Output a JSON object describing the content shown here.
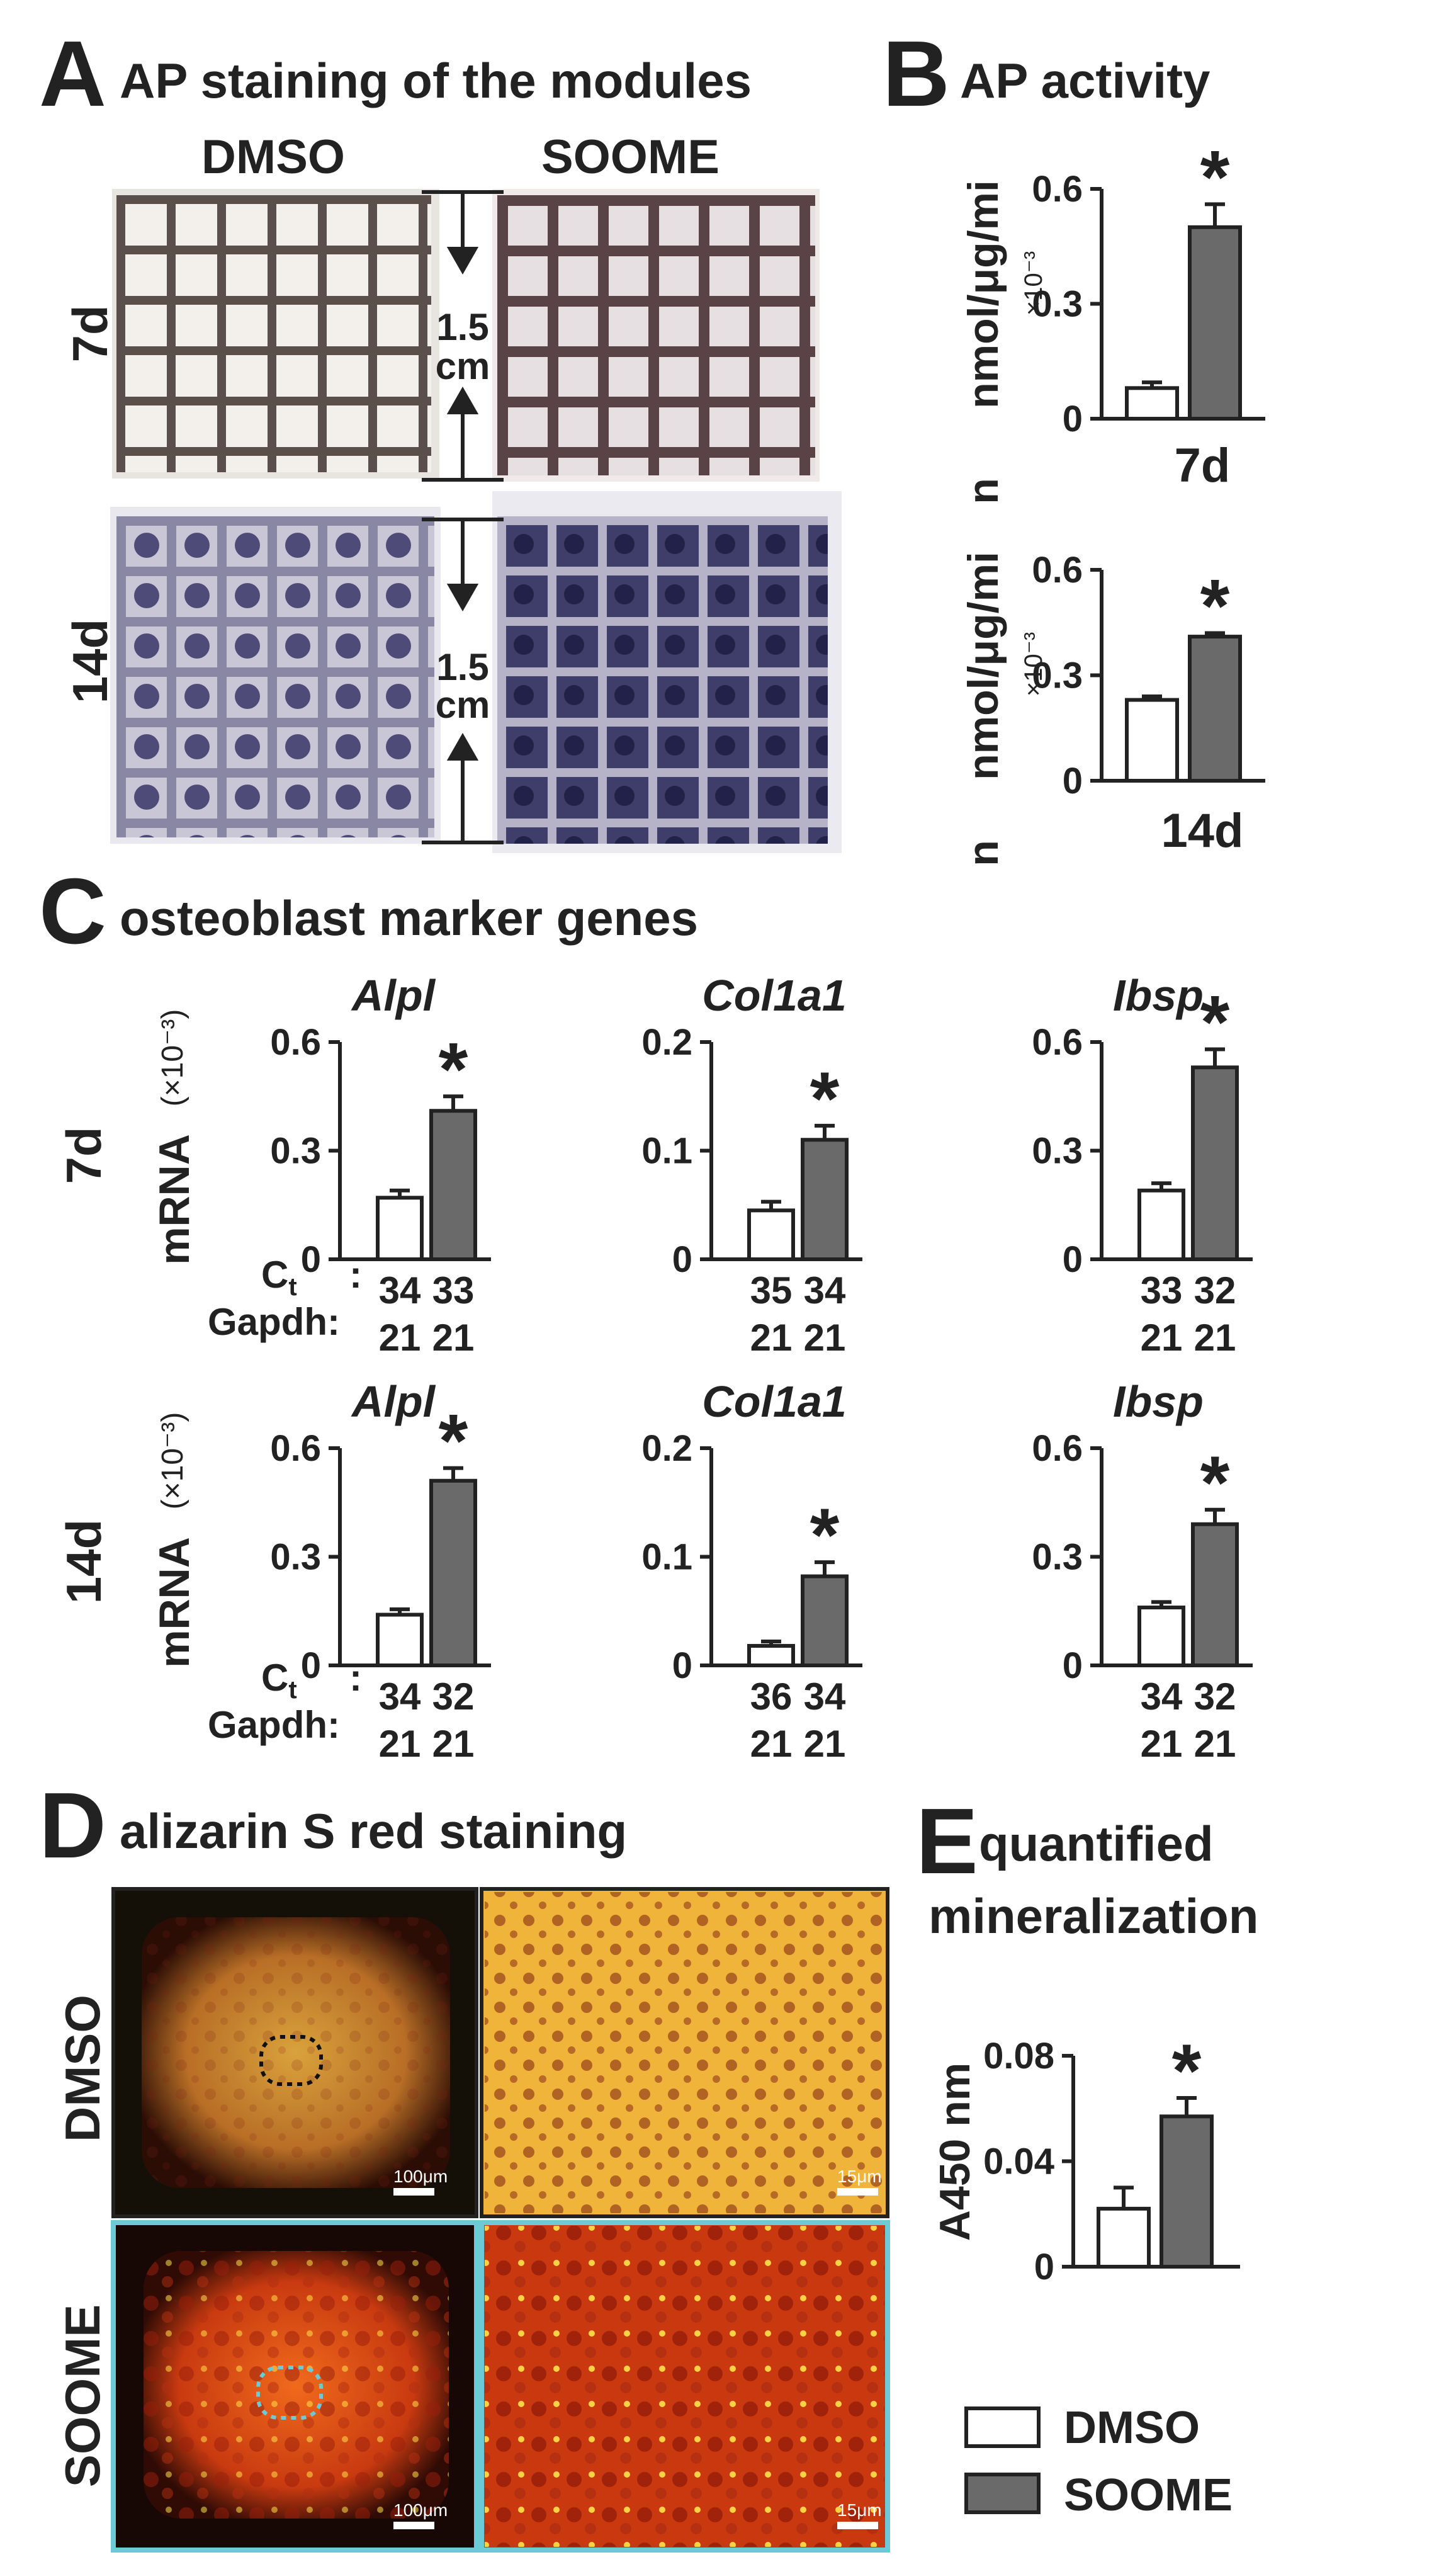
{
  "panels": {
    "A": {
      "letter": "A",
      "title": "AP staining of the modules",
      "col_dmso": "DMSO",
      "col_soome": "SOOME",
      "row_7d": "7d",
      "row_14d": "14d",
      "scale_7d": [
        "1.5",
        "cm"
      ],
      "scale_14d": [
        "1.5",
        "cm"
      ]
    },
    "B": {
      "letter": "B",
      "title": "AP activity"
    },
    "C": {
      "letter": "C",
      "title": "osteoblast marker genes",
      "row_7d": "7d",
      "row_14d": "14d",
      "ylabel_main": "mRNA",
      "ylabel_unit": "(×10⁻³)",
      "ct_label": "C",
      "ct_sub": "t",
      "ct_colon": ":",
      "gapdh_label": "Gapdh:"
    },
    "D": {
      "letter": "D",
      "title": "alizarin S red staining",
      "row_dmso": "DMSO",
      "row_soome": "SOOME",
      "scalebar_left": "100μm",
      "scalebar_right": "15μm"
    },
    "E": {
      "letter": "E",
      "title_line1": "quantified",
      "title_line2": "mineralization"
    }
  },
  "legend": {
    "dmso": "DMSO",
    "soome": "SOOME"
  },
  "colors": {
    "dmso_fill": "#ffffff",
    "soome_fill": "#6a6a6a",
    "ink": "#222222",
    "outline_soome": "#6ccad6"
  },
  "chart_data": [
    {
      "id": "B-7d",
      "type": "bar",
      "categories": [
        "DMSO",
        "SOOME"
      ],
      "values": [
        0.08,
        0.5
      ],
      "errors": [
        0.015,
        0.06
      ],
      "ylim": [
        0,
        0.6
      ],
      "yticks": [
        "0",
        "0.3",
        "0.6"
      ],
      "ylabel": "nmol/μg/mi",
      "ylabel2": "n",
      "multiplier": "×10⁻³",
      "xlabel": "7d",
      "significance": "*"
    },
    {
      "id": "B-14d",
      "type": "bar",
      "categories": [
        "DMSO",
        "SOOME"
      ],
      "values": [
        0.23,
        0.41
      ],
      "errors": [
        0.01,
        0.01
      ],
      "ylim": [
        0,
        0.6
      ],
      "yticks": [
        "0",
        "0.3",
        "0.6"
      ],
      "ylabel": "nmol/μg/mi",
      "ylabel2": "n",
      "multiplier": "×10⁻³",
      "xlabel": "14d",
      "significance": "*"
    },
    {
      "id": "C-7d-Alpl",
      "type": "bar",
      "title": "Alpl",
      "categories": [
        "DMSO",
        "SOOME"
      ],
      "values": [
        0.17,
        0.41
      ],
      "errors": [
        0.02,
        0.04
      ],
      "ylim": [
        0,
        0.6
      ],
      "yticks": [
        "0",
        "0.3",
        "0.6"
      ],
      "ct": [
        "34",
        "33"
      ],
      "gapdh": [
        "21",
        "21"
      ],
      "significance": "*"
    },
    {
      "id": "C-7d-Col1a1",
      "type": "bar",
      "title": "Col1a1",
      "categories": [
        "DMSO",
        "SOOME"
      ],
      "values": [
        0.045,
        0.11
      ],
      "errors": [
        0.008,
        0.013
      ],
      "ylim": [
        0,
        0.2
      ],
      "yticks": [
        "0",
        "0.1",
        "0.2"
      ],
      "ct": [
        "35",
        "34"
      ],
      "gapdh": [
        "21",
        "21"
      ],
      "significance": "*"
    },
    {
      "id": "C-7d-Ibsp",
      "type": "bar",
      "title": "Ibsp",
      "categories": [
        "DMSO",
        "SOOME"
      ],
      "values": [
        0.19,
        0.53
      ],
      "errors": [
        0.02,
        0.05
      ],
      "ylim": [
        0,
        0.6
      ],
      "yticks": [
        "0",
        "0.3",
        "0.6"
      ],
      "ct": [
        "33",
        "32"
      ],
      "gapdh": [
        "21",
        "21"
      ],
      "significance": "*"
    },
    {
      "id": "C-14d-Alpl",
      "type": "bar",
      "title": "Alpl",
      "categories": [
        "DMSO",
        "SOOME"
      ],
      "values": [
        0.14,
        0.51
      ],
      "errors": [
        0.015,
        0.035
      ],
      "ylim": [
        0,
        0.6
      ],
      "yticks": [
        "0",
        "0.3",
        "0.6"
      ],
      "ct": [
        "34",
        "32"
      ],
      "gapdh": [
        "21",
        "21"
      ],
      "significance": "*"
    },
    {
      "id": "C-14d-Col1a1",
      "type": "bar",
      "title": "Col1a1",
      "categories": [
        "DMSO",
        "SOOME"
      ],
      "values": [
        0.018,
        0.082
      ],
      "errors": [
        0.004,
        0.013
      ],
      "ylim": [
        0,
        0.2
      ],
      "yticks": [
        "0",
        "0.1",
        "0.2"
      ],
      "ct": [
        "36",
        "34"
      ],
      "gapdh": [
        "21",
        "21"
      ],
      "significance": "*"
    },
    {
      "id": "C-14d-Ibsp",
      "type": "bar",
      "title": "Ibsp",
      "categories": [
        "DMSO",
        "SOOME"
      ],
      "values": [
        0.16,
        0.39
      ],
      "errors": [
        0.015,
        0.04
      ],
      "ylim": [
        0,
        0.6
      ],
      "yticks": [
        "0",
        "0.3",
        "0.6"
      ],
      "ct": [
        "34",
        "32"
      ],
      "gapdh": [
        "21",
        "21"
      ],
      "significance": "*"
    },
    {
      "id": "E",
      "type": "bar",
      "categories": [
        "DMSO",
        "SOOME"
      ],
      "values": [
        0.022,
        0.057
      ],
      "errors": [
        0.008,
        0.007
      ],
      "ylim": [
        0,
        0.08
      ],
      "yticks": [
        "0",
        "0.04",
        "0.08"
      ],
      "ylabel": "A450 nm",
      "significance": "*"
    }
  ]
}
